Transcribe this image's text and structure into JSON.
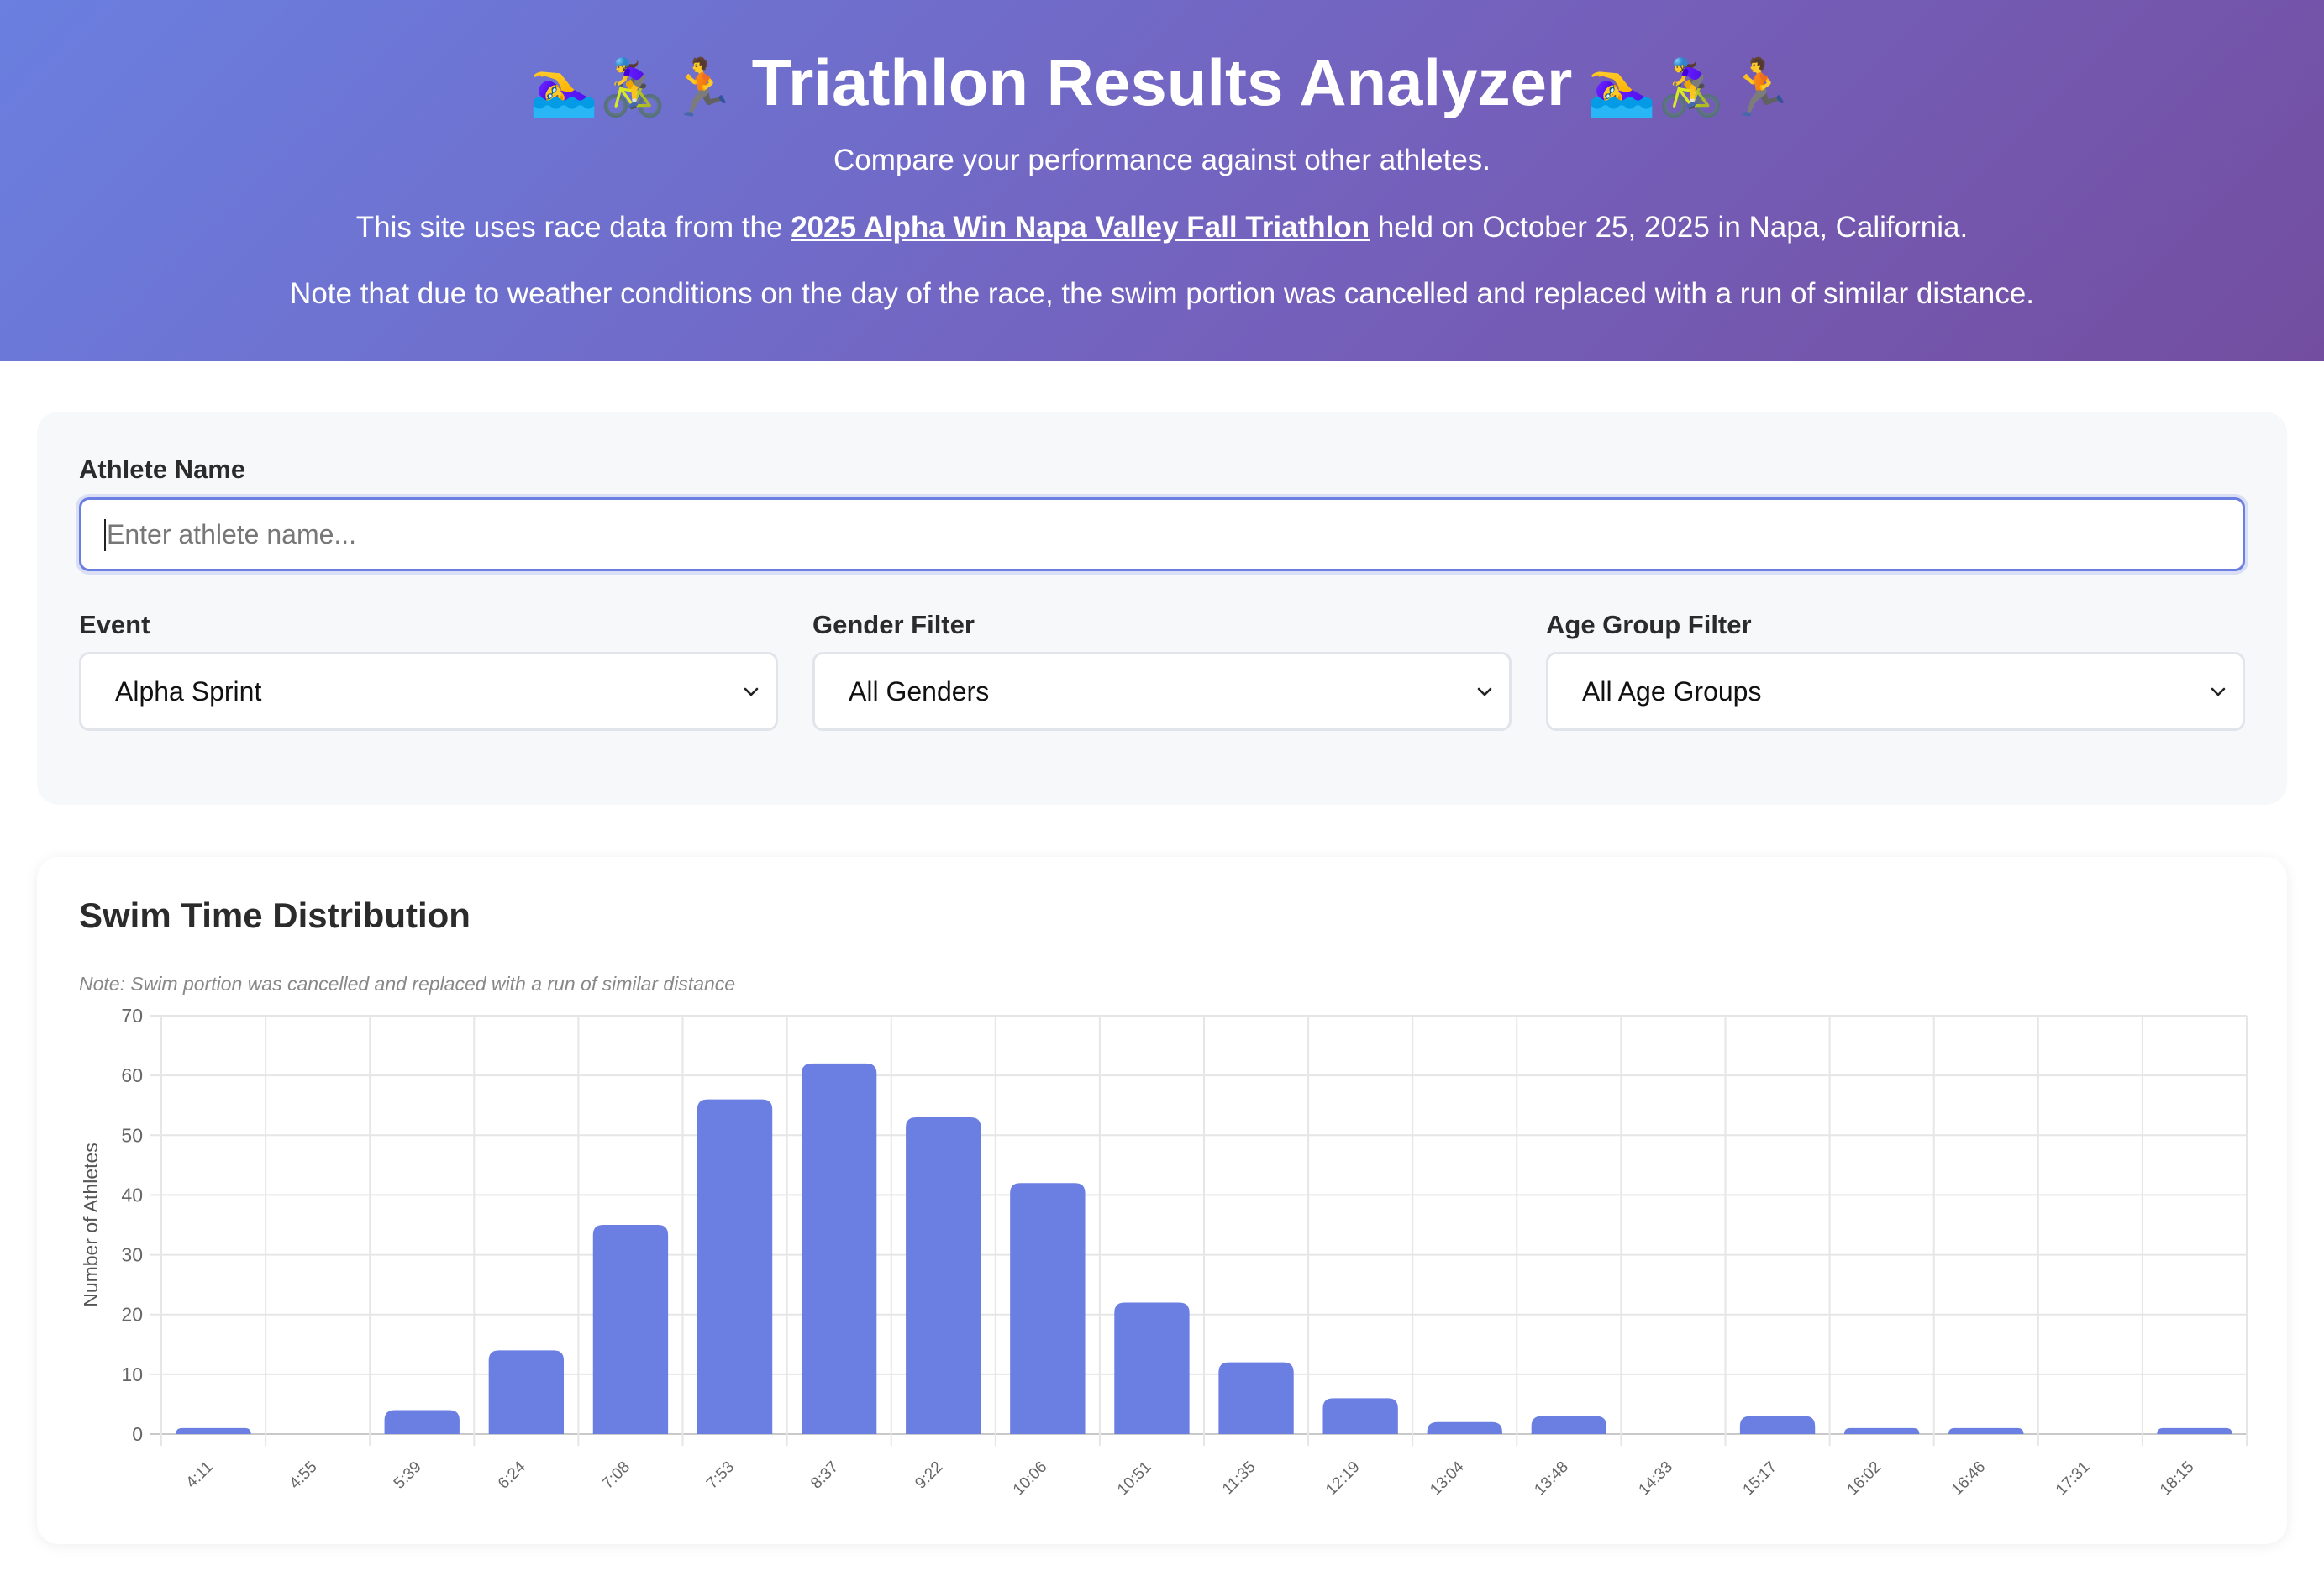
{
  "header": {
    "title": "Triathlon Results Analyzer",
    "title_emoji": "🏊‍♀️🚴‍♀️🏃",
    "subtitle": "Compare your performance against other athletes.",
    "source_prefix": "This site uses race data from the ",
    "source_link": "2025 Alpha Win Napa Valley Fall Triathlon",
    "source_suffix": " held on October 25, 2025 in Napa, California.",
    "weather_note": "Note that due to weather conditions on the day of the race, the swim portion was cancelled and replaced with a run of similar distance."
  },
  "filters": {
    "athlete_label": "Athlete Name",
    "athlete_placeholder": "Enter athlete name...",
    "athlete_value": "",
    "event_label": "Event",
    "event_value": "Alpha Sprint",
    "gender_label": "Gender Filter",
    "gender_value": "All Genders",
    "age_label": "Age Group Filter",
    "age_value": "All Age Groups"
  },
  "chart_card": {
    "title": "Swim Time Distribution",
    "note": "Note: Swim portion was cancelled and replaced with a run of similar distance"
  },
  "colors": {
    "accent": "#6b7fe3",
    "bar": "#6b7fe3",
    "header_start": "#6a7fe0",
    "header_end": "#734ea0"
  },
  "chart_data": {
    "type": "bar",
    "title": "",
    "xlabel": "",
    "ylabel": "Number of Athletes",
    "ylim": [
      0,
      70
    ],
    "yticks": [
      0,
      10,
      20,
      30,
      40,
      50,
      60,
      70
    ],
    "categories": [
      "4:11",
      "4:55",
      "5:39",
      "6:24",
      "7:08",
      "7:53",
      "8:37",
      "9:22",
      "10:06",
      "10:51",
      "11:35",
      "12:19",
      "13:04",
      "13:48",
      "14:33",
      "15:17",
      "16:02",
      "16:46",
      "17:31",
      "18:15"
    ],
    "values": [
      1,
      0,
      4,
      14,
      35,
      56,
      62,
      53,
      42,
      22,
      12,
      6,
      2,
      3,
      0,
      3,
      1,
      1,
      0,
      1
    ],
    "grid": true,
    "legend": "none"
  }
}
